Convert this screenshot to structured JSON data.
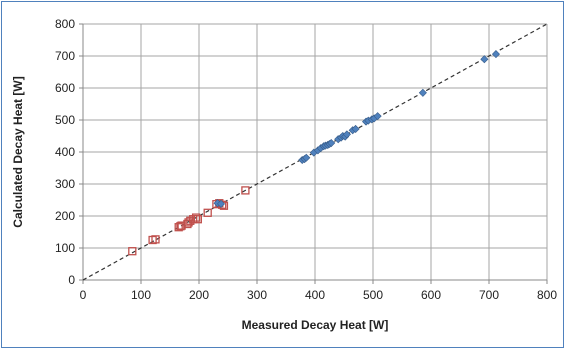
{
  "chart_data": {
    "type": "scatter",
    "title": "",
    "xlabel": "Measured Decay Heat [W]",
    "ylabel": "Calculated Decay Heat [W]",
    "xlim": [
      0,
      800
    ],
    "ylim": [
      0,
      800
    ],
    "x_ticks": [
      "0",
      "100",
      "200",
      "300",
      "400",
      "500",
      "600",
      "700",
      "800"
    ],
    "y_ticks": [
      "0",
      "100",
      "200",
      "300",
      "400",
      "500",
      "600",
      "700",
      "800"
    ],
    "grid": true,
    "legend": "none",
    "reference_line": {
      "style": "dashed",
      "color": "#333333",
      "from": [
        0,
        0
      ],
      "to": [
        800,
        800
      ]
    },
    "series": [
      {
        "marker": "hollow-square",
        "color": "#c0504d",
        "points": [
          [
            85,
            90
          ],
          [
            120,
            125
          ],
          [
            125,
            127
          ],
          [
            165,
            165
          ],
          [
            168,
            168
          ],
          [
            170,
            170
          ],
          [
            180,
            175
          ],
          [
            182,
            180
          ],
          [
            185,
            185
          ],
          [
            190,
            190
          ],
          [
            195,
            195
          ],
          [
            198,
            190
          ],
          [
            215,
            210
          ],
          [
            230,
            237
          ],
          [
            235,
            240
          ],
          [
            240,
            235
          ],
          [
            243,
            232
          ],
          [
            280,
            280
          ]
        ]
      },
      {
        "marker": "diamond",
        "color": "#4f81bd",
        "points": [
          [
            232,
            240
          ],
          [
            238,
            238
          ],
          [
            378,
            375
          ],
          [
            382,
            378
          ],
          [
            385,
            382
          ],
          [
            398,
            398
          ],
          [
            405,
            405
          ],
          [
            410,
            412
          ],
          [
            415,
            418
          ],
          [
            418,
            420
          ],
          [
            422,
            422
          ],
          [
            425,
            425
          ],
          [
            428,
            428
          ],
          [
            440,
            440
          ],
          [
            445,
            445
          ],
          [
            448,
            450
          ],
          [
            452,
            448
          ],
          [
            455,
            455
          ],
          [
            465,
            468
          ],
          [
            470,
            472
          ],
          [
            488,
            495
          ],
          [
            492,
            498
          ],
          [
            498,
            502
          ],
          [
            502,
            505
          ],
          [
            508,
            512
          ],
          [
            586,
            585
          ],
          [
            692,
            690
          ],
          [
            712,
            706
          ]
        ]
      }
    ]
  }
}
